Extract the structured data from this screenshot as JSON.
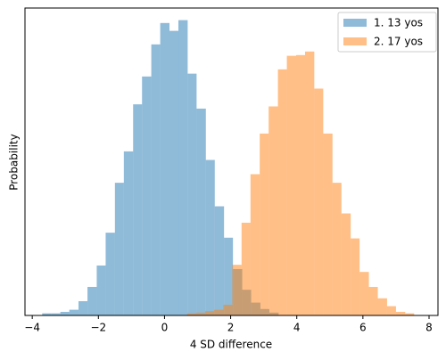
{
  "chart_data": {
    "type": "histogram",
    "xlabel": "4 SD difference",
    "ylabel": "Probability",
    "xlim": [
      -4.22,
      8.27
    ],
    "ylim": [
      0,
      0.431
    ],
    "xticks": [
      {
        "value": -4,
        "label": "−4"
      },
      {
        "value": -2,
        "label": "−2"
      },
      0,
      2,
      4,
      6,
      8
    ],
    "opacity": 0.5,
    "legend": "upper right",
    "series": [
      {
        "name": "1. 13 yos",
        "color": "#1f77b4",
        "bins": [
          -3.7,
          -3.43,
          -3.15,
          -2.88,
          -2.6,
          -2.33,
          -2.05,
          -1.78,
          -1.5,
          -1.23,
          -0.95,
          -0.68,
          -0.4,
          -0.13,
          0.15,
          0.42,
          0.7,
          0.97,
          1.25,
          1.52,
          1.8,
          2.07,
          2.35,
          2.62,
          2.9,
          3.17,
          3.45
        ],
        "values": [
          0.003,
          0.003,
          0.005,
          0.008,
          0.02,
          0.04,
          0.07,
          0.116,
          0.186,
          0.23,
          0.296,
          0.335,
          0.38,
          0.41,
          0.399,
          0.414,
          0.339,
          0.29,
          0.218,
          0.153,
          0.109,
          0.065,
          0.036,
          0.018,
          0.009,
          0.004
        ]
      },
      {
        "name": "2. 17 yos",
        "color": "#ff7f0e",
        "bins": [
          0.68,
          0.95,
          1.23,
          1.5,
          1.78,
          2.05,
          2.33,
          2.6,
          2.88,
          3.15,
          3.43,
          3.7,
          3.98,
          4.25,
          4.53,
          4.8,
          5.08,
          5.35,
          5.63,
          5.9,
          6.18,
          6.45,
          6.73,
          7.0,
          7.28,
          7.55
        ],
        "values": [
          0.003,
          0.004,
          0.006,
          0.008,
          0.015,
          0.071,
          0.13,
          0.198,
          0.255,
          0.293,
          0.345,
          0.364,
          0.365,
          0.37,
          0.318,
          0.255,
          0.186,
          0.143,
          0.108,
          0.061,
          0.04,
          0.024,
          0.013,
          0.005,
          0.003
        ]
      }
    ]
  }
}
